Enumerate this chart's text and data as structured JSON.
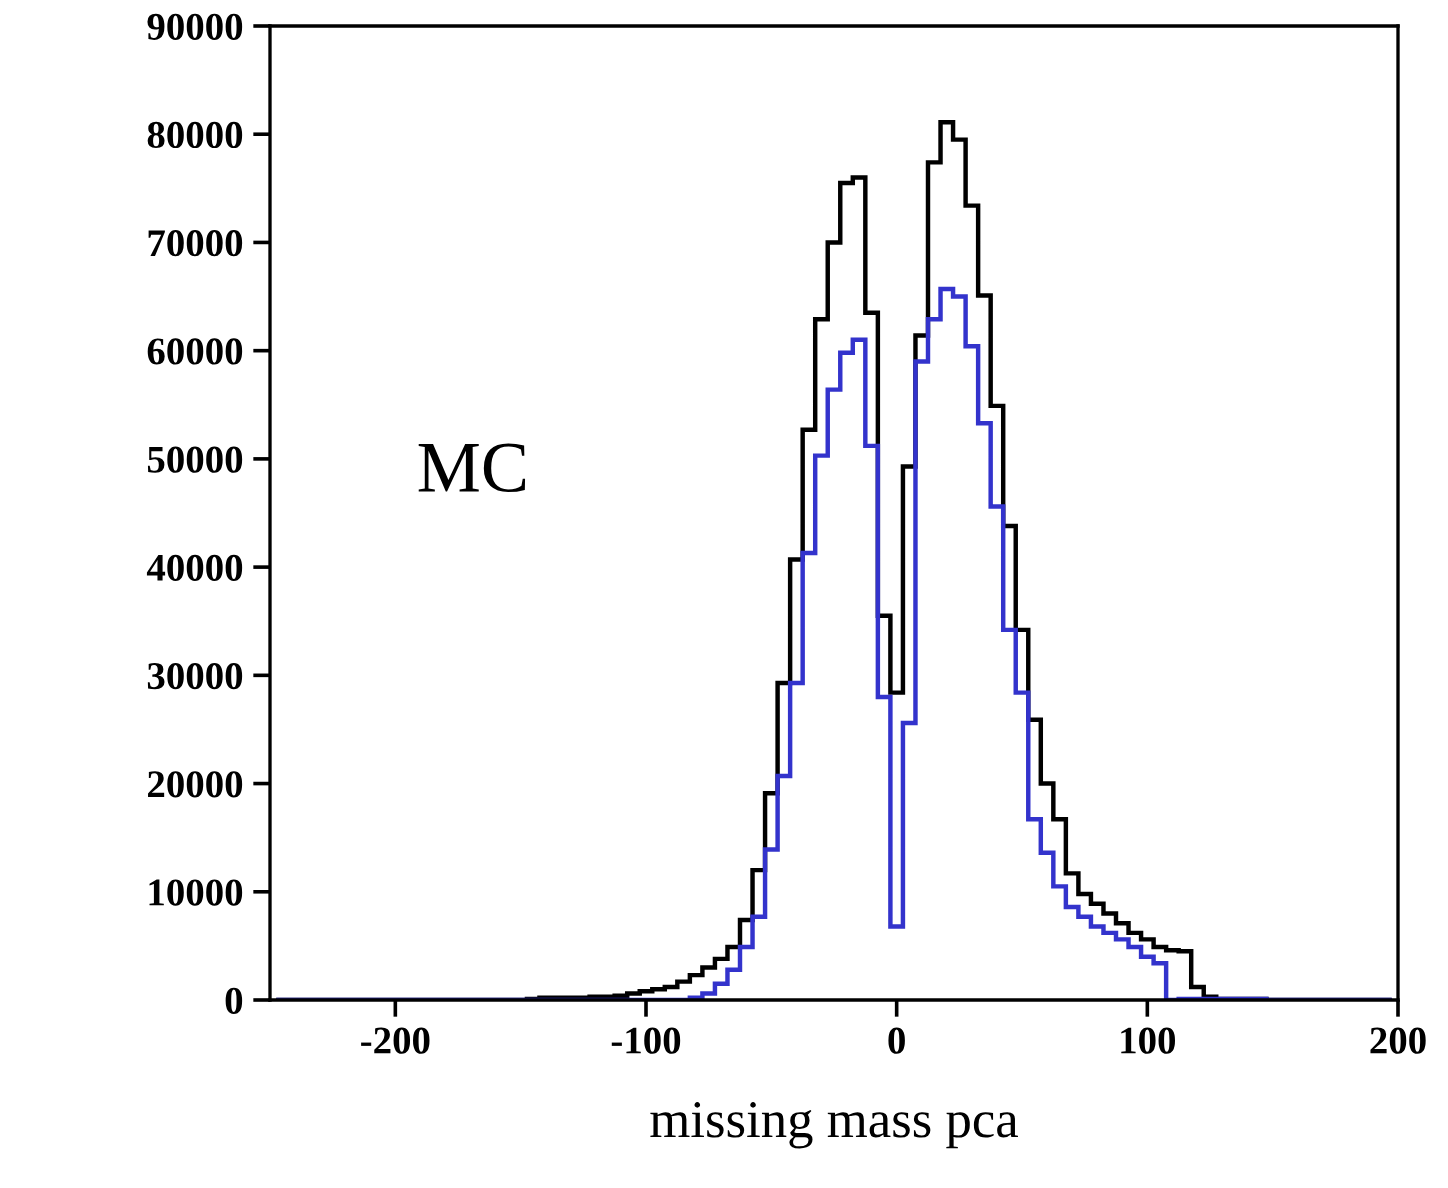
{
  "chart_data": {
    "type": "histogram",
    "xlabel": "missing mass pca",
    "annotations": [
      "MC"
    ],
    "bins": [
      -247.5,
      -242.5,
      -237.5,
      -232.5,
      -227.5,
      -222.5,
      -217.5,
      -212.5,
      -207.5,
      -202.5,
      -197.5,
      -192.5,
      -187.5,
      -182.5,
      -177.5,
      -172.5,
      -167.5,
      -162.5,
      -157.5,
      -152.5,
      -147.5,
      -142.5,
      -137.5,
      -132.5,
      -127.5,
      -122.5,
      -117.5,
      -112.5,
      -107.5,
      -102.5,
      -97.5,
      -92.5,
      -87.5,
      -82.5,
      -77.5,
      -72.5,
      -67.5,
      -62.5,
      -57.5,
      -52.5,
      -47.5,
      -42.5,
      -37.5,
      -32.5,
      -27.5,
      -22.5,
      -17.5,
      -12.5,
      -7.5,
      -2.5,
      2.5,
      7.5,
      12.5,
      17.5,
      22.5,
      27.5,
      32.5,
      37.5,
      42.5,
      47.5,
      52.5,
      57.5,
      62.5,
      67.5,
      72.5,
      77.5,
      82.5,
      87.5,
      92.5,
      97.5,
      102.5,
      107.5,
      112.5,
      117.5,
      122.5,
      127.5,
      132.5,
      137.5,
      142.5,
      147.5,
      152.5,
      157.5,
      162.5,
      167.5,
      172.5,
      177.5,
      182.5,
      187.5,
      192.5,
      197.5
    ],
    "series": [
      {
        "color": "#000000",
        "values": [
          0,
          0,
          0,
          0,
          0,
          0,
          0,
          0,
          0,
          0,
          0,
          0,
          0,
          0,
          0,
          0,
          0,
          0,
          0,
          0,
          100,
          200,
          200,
          200,
          200,
          300,
          300,
          400,
          600,
          800,
          1000,
          1200,
          1700,
          2300,
          3000,
          3800,
          4900,
          7400,
          12000,
          19100,
          29300,
          40700,
          52700,
          62900,
          70000,
          75500,
          76000,
          63500,
          35500,
          28400,
          49300,
          61400,
          77400,
          81100,
          79500,
          73400,
          65100,
          54900,
          43800,
          34200,
          25900,
          20000,
          16700,
          11700,
          9800,
          8900,
          8000,
          7100,
          6200,
          5600,
          4900,
          4600,
          4500,
          1200,
          300,
          100,
          100,
          100,
          100,
          0,
          0,
          0,
          0,
          0,
          0,
          0,
          0,
          0,
          0
        ]
      },
      {
        "color": "#3333cc",
        "values": [
          0,
          0,
          0,
          0,
          0,
          0,
          0,
          0,
          0,
          0,
          0,
          0,
          0,
          0,
          0,
          0,
          0,
          0,
          0,
          0,
          0,
          0,
          0,
          0,
          0,
          0,
          0,
          0,
          0,
          0,
          0,
          0,
          0,
          200,
          600,
          1500,
          2800,
          4900,
          7700,
          13900,
          20700,
          29300,
          41300,
          50300,
          56400,
          59800,
          61000,
          51200,
          28000,
          6800,
          25600,
          59000,
          62900,
          65700,
          65000,
          60400,
          53300,
          45600,
          34200,
          28400,
          16700,
          13600,
          10500,
          8600,
          7700,
          6800,
          6200,
          5600,
          4900,
          4000,
          3400,
          0,
          100,
          100,
          100,
          100,
          100,
          100,
          100,
          0,
          0,
          0,
          0,
          0,
          0,
          0,
          0,
          0,
          0
        ]
      }
    ],
    "xlim": [
      -250,
      200
    ],
    "xticks": [
      -200,
      -100,
      0,
      100,
      200
    ],
    "ylim": [
      0,
      90000
    ],
    "yticks": [
      0,
      10000,
      20000,
      30000,
      40000,
      50000,
      60000,
      70000,
      80000,
      90000
    ],
    "grid": false
  }
}
